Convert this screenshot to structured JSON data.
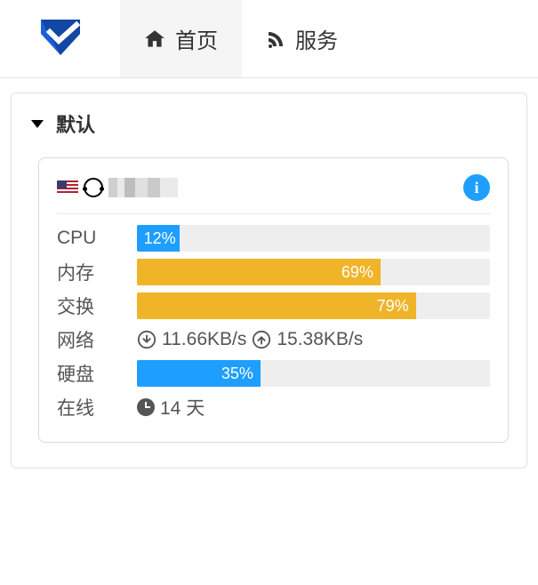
{
  "colors": {
    "brand_blue": "#1b5fd9",
    "brand_blue_dark": "#1347a6",
    "info_blue": "#1e9fff",
    "bar_track": "#eeeeee",
    "bar_blue": "#1e9fff",
    "bar_yellow": "#f0b429",
    "text": "#555555",
    "border": "#e1e1e1"
  },
  "nav": {
    "home": {
      "label": "首页",
      "active": true
    },
    "services": {
      "label": "服务",
      "active": false
    }
  },
  "group": {
    "title": "默认"
  },
  "server": {
    "flag": "us",
    "os": "ubuntu",
    "hostname_obfuscated": true,
    "info_tooltip": "i",
    "metrics": {
      "cpu": {
        "label": "CPU",
        "percent": 12,
        "color": "#1e9fff"
      },
      "mem": {
        "label": "内存",
        "percent": 69,
        "color": "#f0b429"
      },
      "swap": {
        "label": "交换",
        "percent": 79,
        "color": "#f0b429"
      },
      "net": {
        "label": "网络",
        "down": "11.66KB/s",
        "up": "15.38KB/s"
      },
      "disk": {
        "label": "硬盘",
        "percent": 35,
        "color": "#1e9fff"
      },
      "uptime": {
        "label": "在线",
        "value": "14 天"
      }
    }
  }
}
